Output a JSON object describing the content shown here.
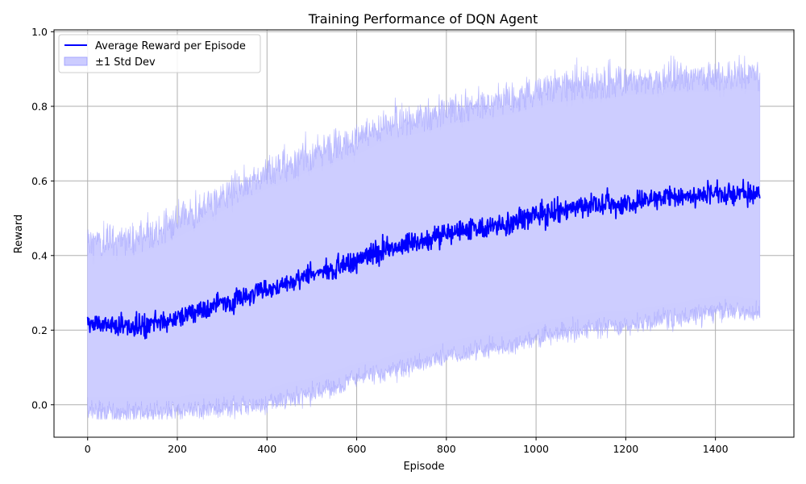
{
  "chart_data": {
    "type": "line",
    "title": "Training Performance of DQN Agent",
    "xlabel": "Episode",
    "ylabel": "Reward",
    "xlim": [
      -75,
      1575
    ],
    "ylim": [
      -0.087,
      1.005
    ],
    "xticks": [
      0,
      200,
      400,
      600,
      800,
      1000,
      1200,
      1400
    ],
    "yticks": [
      0.0,
      0.2,
      0.4,
      0.6,
      0.8,
      1.0
    ],
    "xtick_labels": [
      "0",
      "200",
      "400",
      "600",
      "800",
      "1000",
      "1200",
      "1400"
    ],
    "ytick_labels": [
      "0.0",
      "0.2",
      "0.4",
      "0.6",
      "0.8",
      "1.0"
    ],
    "grid": true,
    "legend_position": "upper-left",
    "series": [
      {
        "name": "Average Reward per Episode",
        "kind": "line",
        "color": "#0000ff",
        "x": [
          0,
          50,
          100,
          150,
          200,
          250,
          300,
          350,
          400,
          450,
          500,
          550,
          600,
          650,
          700,
          750,
          800,
          850,
          900,
          950,
          1000,
          1050,
          1100,
          1150,
          1200,
          1250,
          1300,
          1350,
          1400,
          1450,
          1499
        ],
        "y": [
          0.22,
          0.21,
          0.21,
          0.22,
          0.23,
          0.25,
          0.27,
          0.29,
          0.31,
          0.33,
          0.35,
          0.37,
          0.39,
          0.41,
          0.43,
          0.44,
          0.46,
          0.47,
          0.48,
          0.49,
          0.51,
          0.52,
          0.53,
          0.54,
          0.54,
          0.55,
          0.56,
          0.56,
          0.57,
          0.57,
          0.56
        ]
      },
      {
        "name": "±1 Std Dev",
        "kind": "band",
        "color": "#0000ff",
        "x": [
          0,
          50,
          100,
          150,
          200,
          250,
          300,
          350,
          400,
          450,
          500,
          550,
          600,
          650,
          700,
          750,
          800,
          850,
          900,
          950,
          1000,
          1050,
          1100,
          1150,
          1200,
          1250,
          1300,
          1350,
          1400,
          1450,
          1499
        ],
        "upper": [
          0.44,
          0.44,
          0.44,
          0.46,
          0.49,
          0.52,
          0.56,
          0.59,
          0.62,
          0.64,
          0.67,
          0.69,
          0.71,
          0.74,
          0.76,
          0.77,
          0.79,
          0.8,
          0.81,
          0.82,
          0.84,
          0.85,
          0.86,
          0.86,
          0.87,
          0.87,
          0.88,
          0.88,
          0.88,
          0.89,
          0.88
        ],
        "lower": [
          -0.02,
          -0.02,
          -0.02,
          -0.02,
          -0.02,
          -0.01,
          -0.01,
          0.0,
          0.0,
          0.02,
          0.03,
          0.05,
          0.07,
          0.08,
          0.1,
          0.11,
          0.13,
          0.14,
          0.15,
          0.16,
          0.18,
          0.19,
          0.2,
          0.21,
          0.21,
          0.22,
          0.23,
          0.24,
          0.25,
          0.25,
          0.24
        ]
      }
    ]
  },
  "colors": {
    "line": "#0000ff",
    "band_fill": "#ccccff",
    "band_edge": "#9999ff",
    "grid": "#b0b0b0"
  }
}
